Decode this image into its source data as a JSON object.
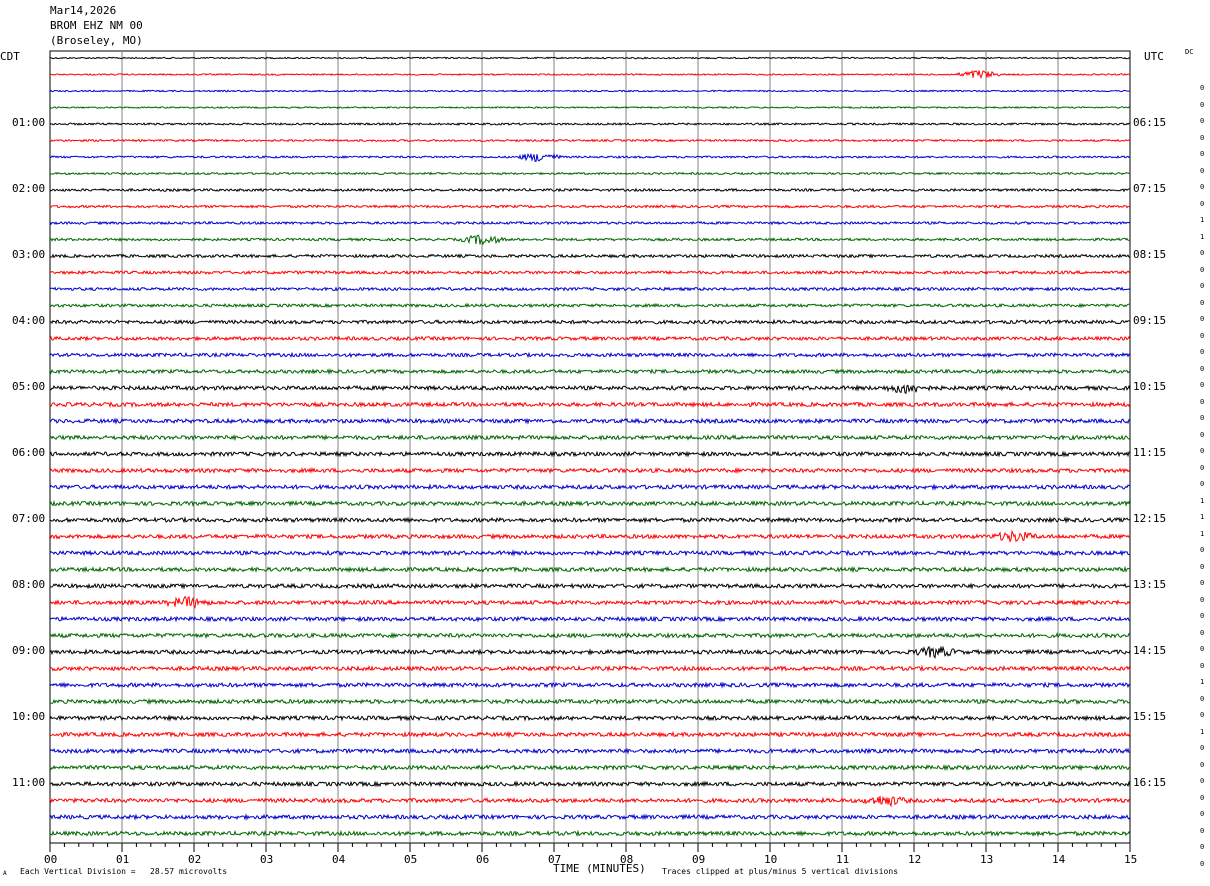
{
  "header": {
    "date": "Mar14,2026",
    "station": "BROM EHZ NM 00",
    "location": "(Broseley, MO)"
  },
  "left_timezone": "CDT",
  "right_timezone": "UTC",
  "dc_label": "DC",
  "footer": {
    "scale_text": "Each Vertical Division =   28.57 microvolts",
    "xlabel": "TIME (MINUTES)",
    "clip_text": "Traces clipped at plus/minus 5 vertical divisions",
    "corner_mark": "A"
  },
  "colors": {
    "trace_cycle": [
      "#000000",
      "#ff0000",
      "#0000cc",
      "#006600"
    ],
    "grid": "#808080"
  },
  "chart_data": {
    "type": "line",
    "title": "",
    "xlabel": "TIME (MINUTES)",
    "ylabel": "",
    "xlim": [
      0,
      15
    ],
    "x_ticks": [
      "00",
      "01",
      "02",
      "03",
      "04",
      "05",
      "06",
      "07",
      "08",
      "09",
      "10",
      "11",
      "12",
      "13",
      "14",
      "15"
    ],
    "left_hour_labels": [
      "01:00",
      "02:00",
      "03:00",
      "04:00",
      "05:00",
      "06:00",
      "07:00",
      "08:00",
      "09:00",
      "10:00",
      "11:00"
    ],
    "right_hour_labels": [
      "06:15",
      "07:15",
      "08:15",
      "09:15",
      "10:15",
      "11:15",
      "12:15",
      "13:15",
      "14:15",
      "15:15",
      "16:15"
    ],
    "trace_count": 48,
    "trace_minutes": 15,
    "dc_offsets": [
      "0",
      "0",
      "0",
      "0",
      "0",
      "0",
      "0",
      "0",
      "1",
      "1",
      "0",
      "0",
      "0",
      "0",
      "0",
      "0",
      "0",
      "0",
      "0",
      "0",
      "0",
      "0",
      "0",
      "0",
      "0",
      "1",
      "1",
      "1",
      "0",
      "0",
      "0",
      "0",
      "0",
      "0",
      "0",
      "0",
      "1",
      "0",
      "0",
      "1",
      "0",
      "0",
      "0",
      "0",
      "0",
      "0",
      "0",
      "0"
    ],
    "notable_events": [
      {
        "trace": 1,
        "minute": 12.9
      },
      {
        "trace": 6,
        "minute": 6.8
      },
      {
        "trace": 11,
        "minute": 6.0
      },
      {
        "trace": 20,
        "minute": 11.9
      },
      {
        "trace": 29,
        "minute": 13.4
      },
      {
        "trace": 33,
        "minute": 1.9
      },
      {
        "trace": 36,
        "minute": 12.3
      },
      {
        "trace": 45,
        "minute": 11.6
      }
    ]
  }
}
